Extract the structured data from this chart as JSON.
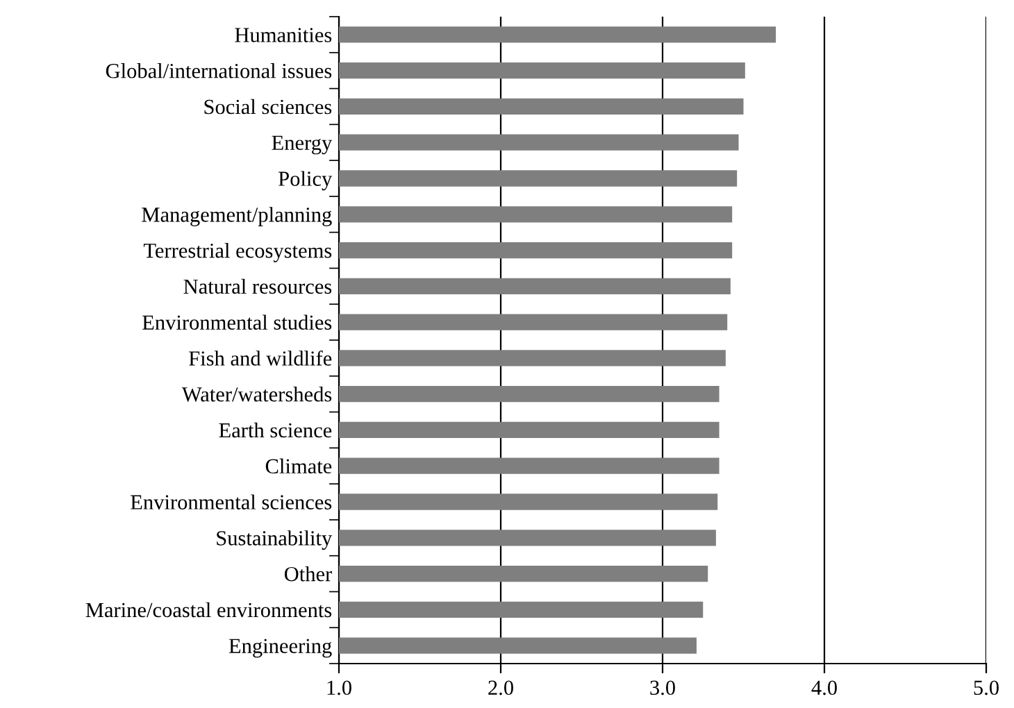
{
  "chart_data": {
    "type": "bar",
    "orientation": "horizontal",
    "categories": [
      "Humanities",
      "Global/international issues",
      "Social sciences",
      "Energy",
      "Policy",
      "Management/planning",
      "Terrestrial ecosystems",
      "Natural resources",
      "Environmental studies",
      "Fish and wildlife",
      "Water/watersheds",
      "Earth science",
      "Climate",
      "Environmental sciences",
      "Sustainability",
      "Other",
      "Marine/coastal environments",
      "Engineering"
    ],
    "values": [
      3.7,
      3.51,
      3.5,
      3.47,
      3.46,
      3.43,
      3.43,
      3.42,
      3.4,
      3.39,
      3.35,
      3.35,
      3.35,
      3.34,
      3.33,
      3.28,
      3.25,
      3.21
    ],
    "color": "#7f7f7f",
    "xlim": [
      1,
      5
    ],
    "xticks": [
      {
        "value": 1,
        "label": "1.0"
      },
      {
        "value": 2,
        "label": "2.0"
      },
      {
        "value": 3,
        "label": "3.0"
      },
      {
        "value": 4,
        "label": "4.0"
      },
      {
        "value": 5,
        "label": "5.0"
      }
    ],
    "grid": "x",
    "legend": false
  }
}
